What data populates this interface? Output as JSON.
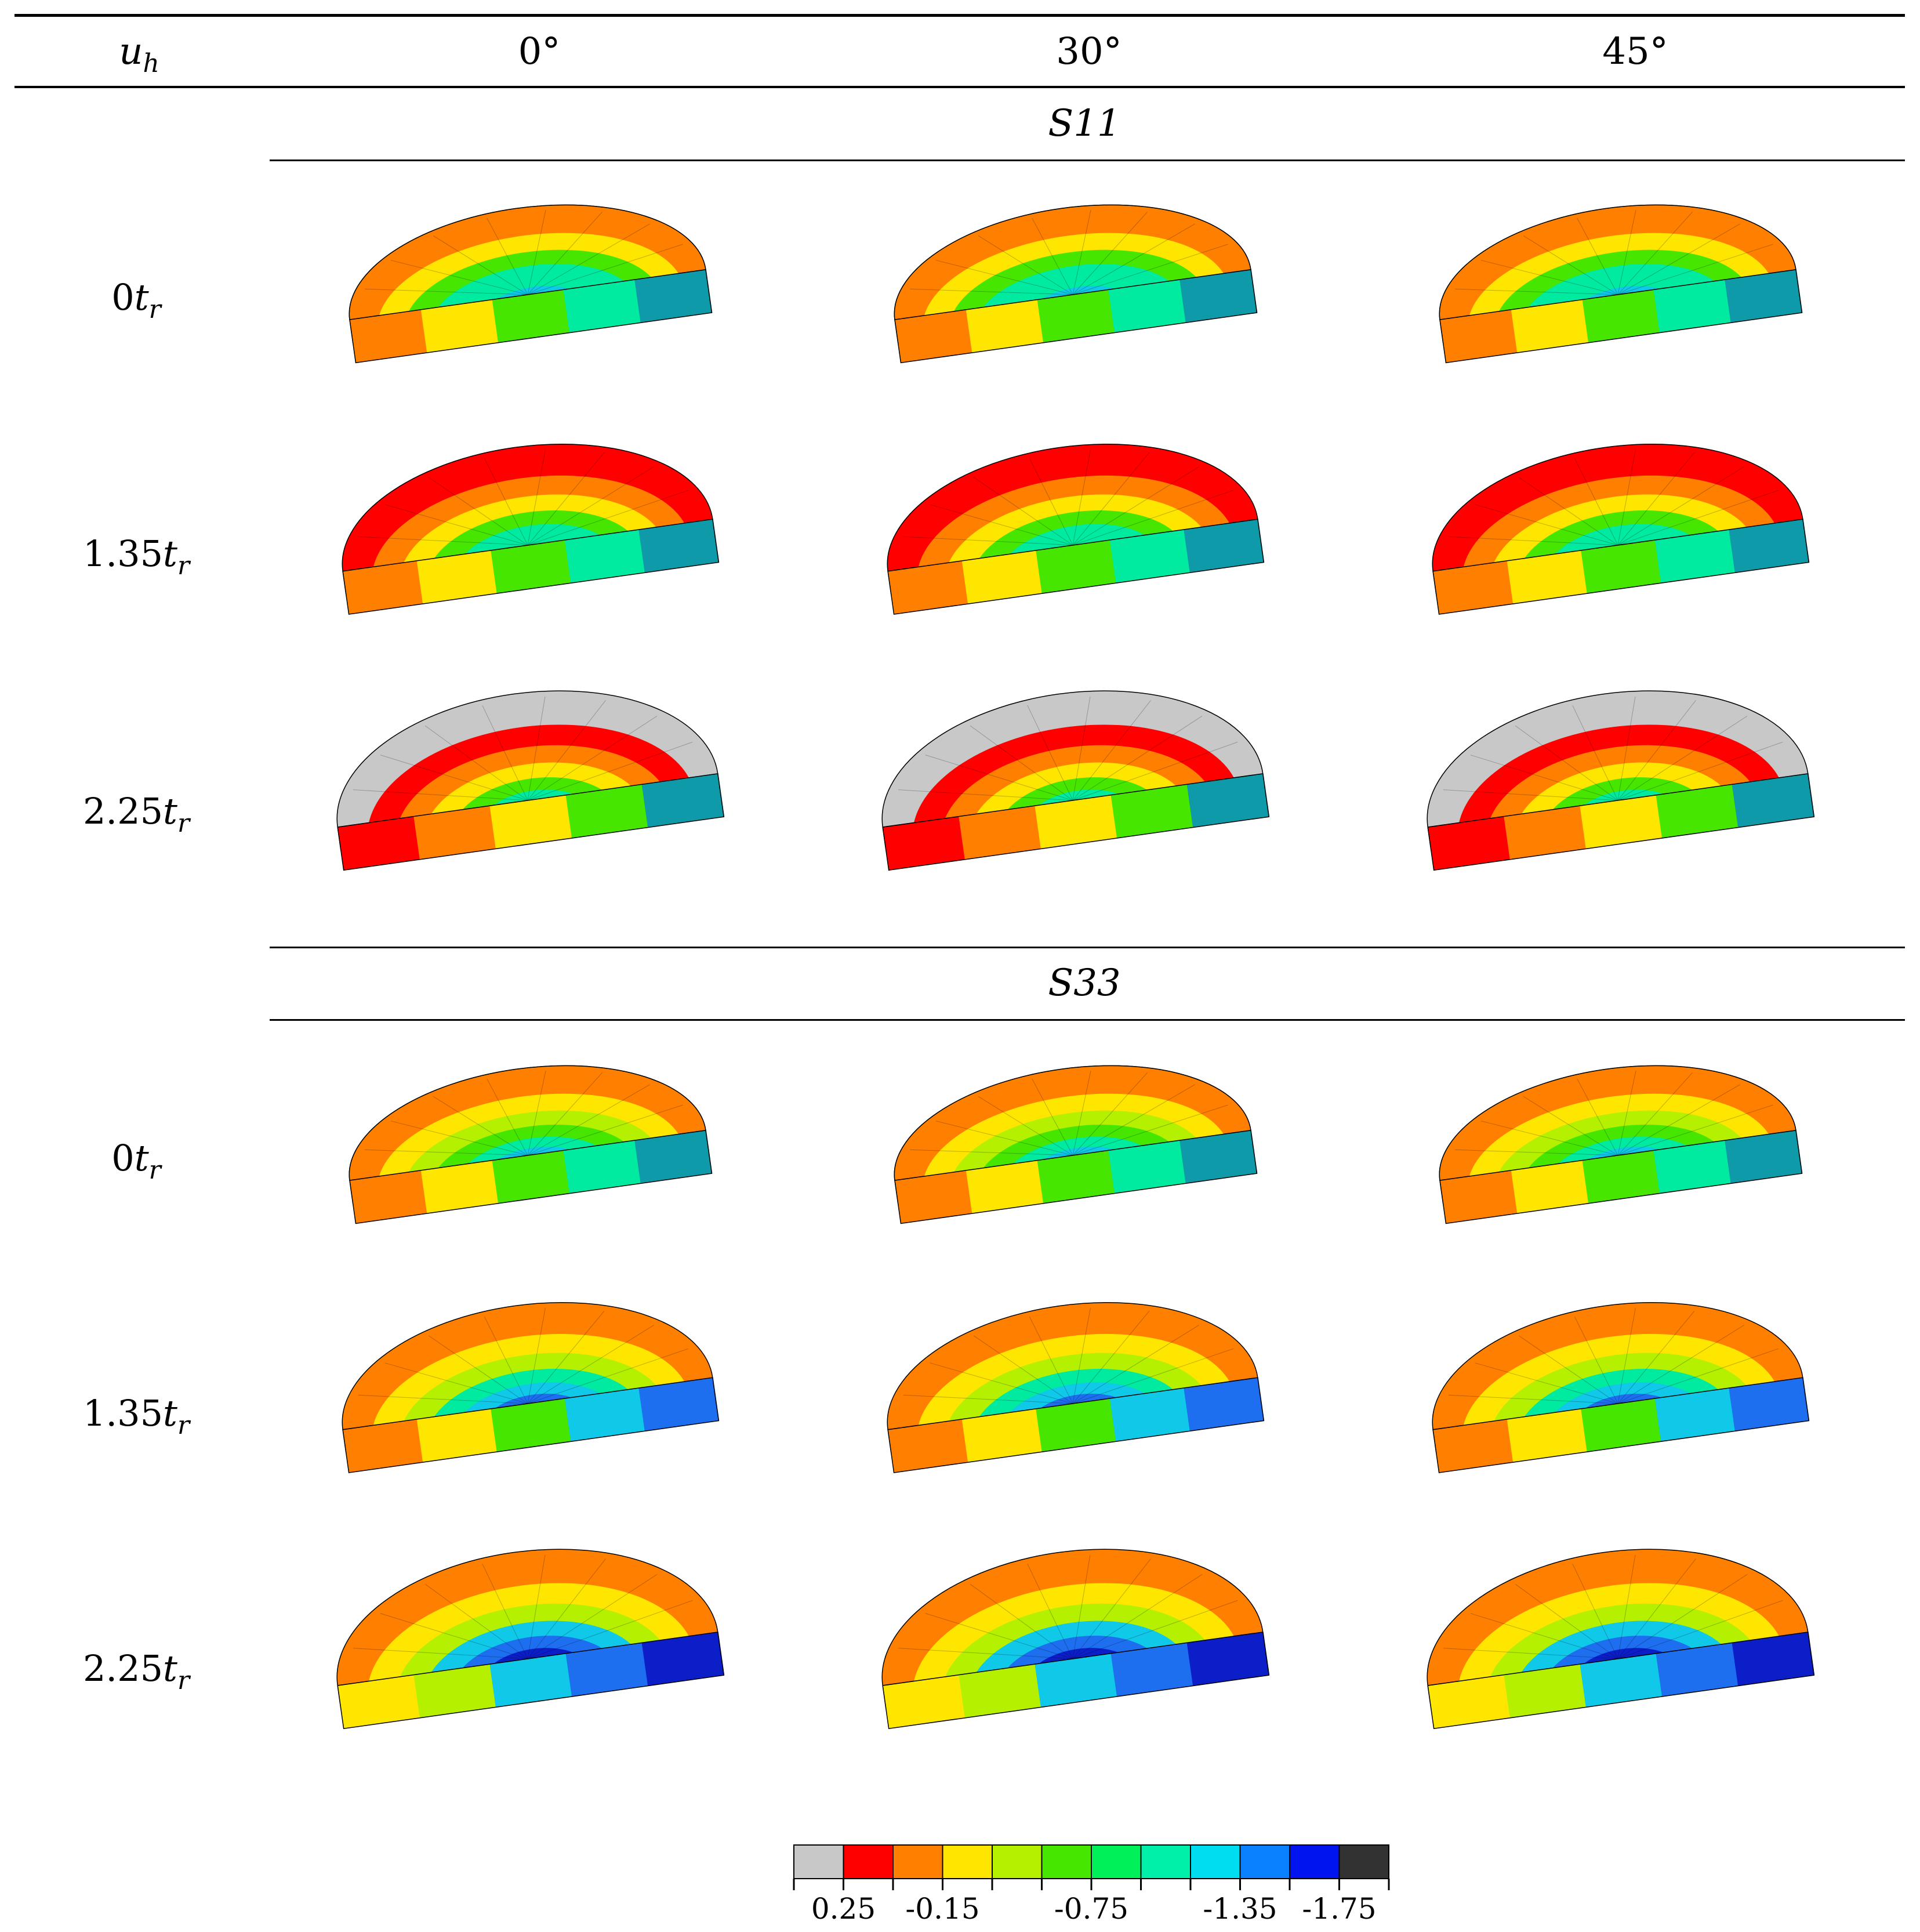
{
  "table": {
    "header": {
      "row_label_header": "u",
      "row_label_header_sub": "h",
      "columns": [
        "0°",
        "30°",
        "45°"
      ]
    },
    "sections": [
      {
        "title": "S11",
        "rows": [
          {
            "label": "0",
            "t": "t",
            "sub": "r"
          },
          {
            "label": "1.35",
            "t": "t",
            "sub": "r"
          },
          {
            "label": "2.25",
            "t": "t",
            "sub": "r"
          }
        ]
      },
      {
        "title": "S33",
        "rows": [
          {
            "label": "0",
            "t": "t",
            "sub": "r"
          },
          {
            "label": "1.35",
            "t": "t",
            "sub": "r"
          },
          {
            "label": "2.25",
            "t": "t",
            "sub": "r"
          }
        ]
      }
    ]
  },
  "colorbar": {
    "colors": [
      "#c8c8c8",
      "#ff0000",
      "#ff7f00",
      "#ffe600",
      "#b4f000",
      "#46e600",
      "#00f05a",
      "#00f0aa",
      "#00dcf0",
      "#0a82ff",
      "#0014f0",
      "#323232"
    ],
    "tick_labels": [
      "0.25",
      "-0.15",
      "-0.75",
      "-1.35",
      "-1.75"
    ]
  },
  "palette": {
    "grey": "#c8c8c8",
    "red": "#ff0000",
    "orange": "#ff7f00",
    "yellow": "#ffe600",
    "yellowgreen": "#b4f000",
    "green": "#46e600",
    "lightgreen": "#22e860",
    "teal": "#00eaa0",
    "cyan": "#10c8e8",
    "blue": "#1e6ef0",
    "darkblue": "#0c1ec8",
    "steel": "#0e9aa8",
    "brown": "#b85a00"
  }
}
